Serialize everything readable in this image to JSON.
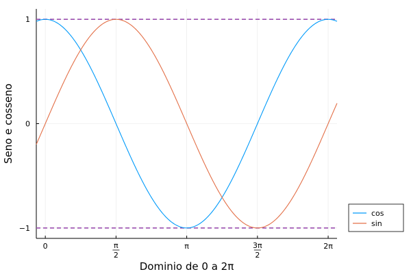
{
  "chart_data": {
    "type": "line",
    "xlabel": "Dominio de 0 a 2π",
    "ylabel": "Seno e cosseno",
    "xlim": [
      -0.2,
      6.48
    ],
    "ylim": [
      -1.1,
      1.1
    ],
    "x_ticks": [
      {
        "value": 0,
        "label": "0"
      },
      {
        "value": 1.5708,
        "num": "π",
        "den": "2"
      },
      {
        "value": 3.1416,
        "label": "π"
      },
      {
        "value": 4.7124,
        "num": "3π",
        "den": "2"
      },
      {
        "value": 6.2832,
        "label": "2π"
      }
    ],
    "y_ticks": [
      {
        "value": -1,
        "label": "−1"
      },
      {
        "value": 0,
        "label": "0"
      },
      {
        "value": 1,
        "label": "1"
      }
    ],
    "grid": true,
    "legend": "outside-right-bottom",
    "series": [
      {
        "name": "cos",
        "function": "cos",
        "x_range": [
          -0.2,
          6.48
        ],
        "color": "#009AFA"
      },
      {
        "name": "sin",
        "function": "sin",
        "x_range": [
          -0.2,
          6.48
        ],
        "color": "#E36F47"
      }
    ],
    "reference_lines": [
      {
        "y": 1,
        "style": "dashed",
        "color": "#9B4FAF"
      },
      {
        "y": -1,
        "style": "dashed",
        "color": "#9B4FAF"
      }
    ]
  }
}
